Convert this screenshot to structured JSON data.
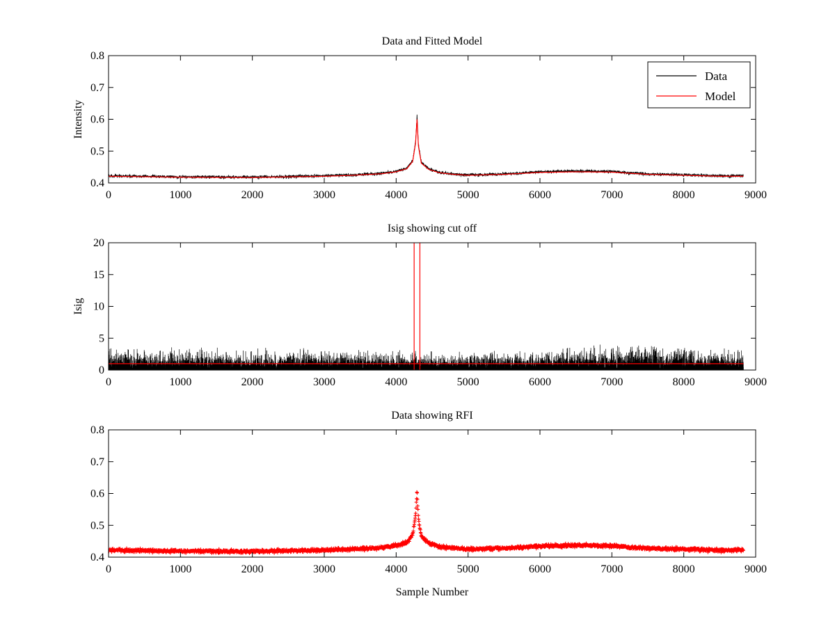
{
  "chart_data": [
    {
      "id": "top",
      "type": "line",
      "title": "Data and Fitted Model",
      "xlabel": "",
      "ylabel": "Intensity",
      "xlim": [
        0,
        9000
      ],
      "ylim": [
        0.4,
        0.8
      ],
      "xticks": [
        0,
        1000,
        2000,
        3000,
        4000,
        5000,
        6000,
        7000,
        8000,
        9000
      ],
      "yticks": [
        0.4,
        0.5,
        0.6,
        0.7,
        0.8
      ],
      "x_extent": [
        0,
        8830
      ],
      "legend": {
        "placement": "top-right",
        "entries": [
          "Data",
          "Model"
        ]
      },
      "series": [
        {
          "name": "Data",
          "color": "#000000",
          "style": "noisy-line",
          "noise_amplitude": 0.004,
          "x": [
            0,
            1000,
            2000,
            3000,
            3400,
            3800,
            4000,
            4150,
            4230,
            4270,
            4290,
            4310,
            4350,
            4450,
            4600,
            4800,
            5000,
            5500,
            6000,
            6500,
            7000,
            7200,
            7500,
            8000,
            8500,
            8830
          ],
          "values": [
            0.422,
            0.419,
            0.418,
            0.422,
            0.425,
            0.43,
            0.436,
            0.446,
            0.47,
            0.53,
            0.61,
            0.52,
            0.465,
            0.445,
            0.433,
            0.428,
            0.425,
            0.428,
            0.435,
            0.437,
            0.436,
            0.432,
            0.428,
            0.425,
            0.422,
            0.422
          ]
        },
        {
          "name": "Model",
          "color": "#ff0000",
          "style": "smooth-line",
          "x": [
            0,
            1000,
            2000,
            3000,
            3400,
            3800,
            4000,
            4150,
            4230,
            4270,
            4290,
            4310,
            4350,
            4450,
            4600,
            4800,
            5000,
            5500,
            6000,
            6500,
            7000,
            7200,
            7500,
            8000,
            8500,
            8830
          ],
          "values": [
            0.421,
            0.418,
            0.417,
            0.421,
            0.424,
            0.429,
            0.435,
            0.445,
            0.468,
            0.525,
            0.6,
            0.515,
            0.462,
            0.443,
            0.432,
            0.427,
            0.424,
            0.427,
            0.433,
            0.435,
            0.434,
            0.431,
            0.427,
            0.424,
            0.421,
            0.421
          ]
        }
      ]
    },
    {
      "id": "middle",
      "type": "line",
      "title": "Isig showing cut off",
      "xlabel": "",
      "ylabel": "Isig",
      "xlim": [
        0,
        9000
      ],
      "ylim": [
        0,
        20
      ],
      "xticks": [
        0,
        1000,
        2000,
        3000,
        4000,
        5000,
        6000,
        7000,
        8000,
        9000
      ],
      "yticks": [
        0,
        5,
        10,
        15,
        20
      ],
      "x_extent": [
        0,
        8830
      ],
      "series": [
        {
          "name": "Isig",
          "color": "#000000",
          "style": "noise-spikes",
          "typical_peak": 1.5,
          "max_peak": 4.0,
          "envelope_x": [
            0,
            1000,
            2000,
            3000,
            4000,
            5000,
            6000,
            6800,
            7500,
            8000,
            8830
          ],
          "envelope_values": [
            2.6,
            2.7,
            2.5,
            2.6,
            2.3,
            2.3,
            2.5,
            3.0,
            3.3,
            3.0,
            2.6
          ]
        },
        {
          "name": "cut off",
          "color": "#ff0000",
          "style": "hline",
          "y": 1.0
        },
        {
          "name": "cut off window",
          "color": "#ff0000",
          "style": "vlines",
          "x": [
            4250,
            4330
          ]
        }
      ]
    },
    {
      "id": "bottom",
      "type": "scatter",
      "title": "Data showing RFI",
      "xlabel": "Sample Number",
      "ylabel": "",
      "xlim": [
        0,
        9000
      ],
      "ylim": [
        0.4,
        0.8
      ],
      "xticks": [
        0,
        1000,
        2000,
        3000,
        4000,
        5000,
        6000,
        7000,
        8000,
        9000
      ],
      "yticks": [
        0.4,
        0.5,
        0.6,
        0.7,
        0.8
      ],
      "x_extent": [
        0,
        8830
      ],
      "series": [
        {
          "name": "RFI",
          "color": "#ff0000",
          "style": "dense-markers",
          "noise_amplitude": 0.005,
          "x": [
            0,
            1000,
            2000,
            3000,
            3400,
            3800,
            4000,
            4150,
            4230,
            4270,
            4290,
            4310,
            4350,
            4450,
            4600,
            4800,
            5000,
            5500,
            6000,
            6500,
            7000,
            7200,
            7500,
            8000,
            8500,
            8830
          ],
          "values": [
            0.422,
            0.419,
            0.418,
            0.422,
            0.425,
            0.43,
            0.436,
            0.446,
            0.47,
            0.53,
            0.61,
            0.52,
            0.465,
            0.445,
            0.433,
            0.428,
            0.425,
            0.428,
            0.435,
            0.437,
            0.436,
            0.432,
            0.428,
            0.425,
            0.422,
            0.422
          ]
        }
      ]
    }
  ]
}
